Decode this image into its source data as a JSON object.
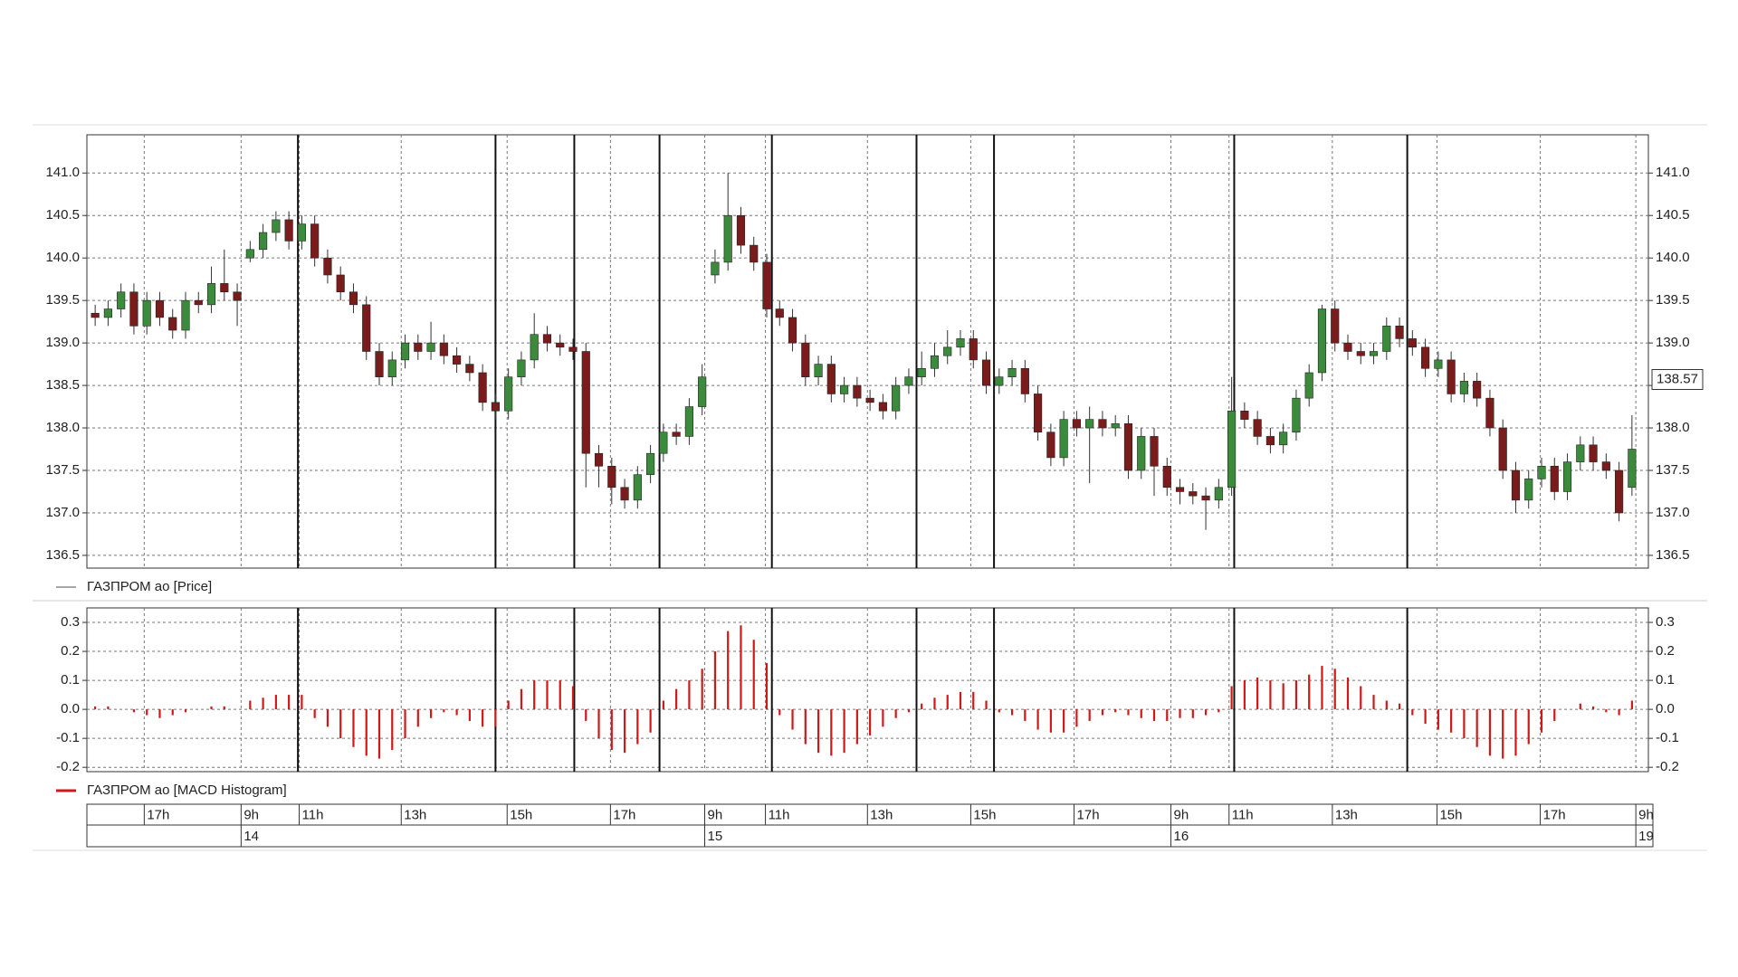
{
  "chart_data": [
    {
      "type": "candlestick",
      "legend": "ГАЗПРОМ ао [Price]",
      "line_color": "#888888",
      "up_color": "#3c8a3c",
      "down_color": "#7a1c1c",
      "grid": true,
      "xlim": [
        0,
        120
      ],
      "ylim": [
        136.35,
        141.45
      ],
      "yticks": [
        {
          "value": 141,
          "label": "141.0"
        },
        140.5,
        {
          "value": 140,
          "label": "140.0"
        },
        139.5,
        {
          "value": 139,
          "label": "139.0"
        },
        138.5,
        {
          "value": 138,
          "label": "138.0"
        },
        137.5,
        {
          "value": 137,
          "label": "137.0"
        },
        136.5
      ],
      "last_price": 138.57,
      "xticks": [
        {
          "value": 4.3,
          "label": "17h"
        },
        {
          "value": 11.8,
          "label": "9h"
        },
        {
          "value": 16.3,
          "label": "11h"
        },
        {
          "value": 24.2,
          "label": "13h"
        },
        {
          "value": 32.4,
          "label": "15h"
        },
        {
          "value": 40.4,
          "label": "17h"
        },
        {
          "value": 47.7,
          "label": "9h"
        },
        {
          "value": 52.4,
          "label": "11h"
        },
        {
          "value": 60.3,
          "label": "13h"
        },
        {
          "value": 68.3,
          "label": "15h"
        },
        {
          "value": 76.3,
          "label": "17h"
        },
        {
          "value": 83.8,
          "label": "9h"
        },
        {
          "value": 88.3,
          "label": "11h"
        },
        {
          "value": 96.3,
          "label": "13h"
        },
        {
          "value": 104.4,
          "label": "15h"
        },
        {
          "value": 112.4,
          "label": "17h"
        },
        {
          "value": 119.8,
          "label": "9h"
        }
      ],
      "day_ticks": [
        {
          "value": 11.8,
          "label": "14"
        },
        {
          "value": 47.7,
          "label": "15"
        },
        {
          "value": 83.8,
          "label": "16"
        },
        {
          "value": 119.8,
          "label": "19"
        }
      ],
      "session_breaks": [
        16.2,
        31.5,
        37.6,
        44.2,
        52.9,
        64.1,
        70.1,
        88.7,
        102.1
      ],
      "open": [
        139.35,
        139.3,
        139.4,
        139.6,
        139.2,
        139.5,
        139.3,
        139.15,
        139.5,
        139.45,
        139.7,
        139.6,
        140.0,
        140.1,
        140.3,
        140.45,
        140.2,
        140.4,
        140.0,
        139.8,
        139.6,
        139.45,
        138.9,
        138.6,
        138.8,
        139.0,
        138.9,
        139.0,
        138.85,
        138.75,
        138.65,
        138.3,
        138.2,
        138.6,
        138.8,
        139.1,
        139.0,
        138.95,
        138.9,
        137.7,
        137.55,
        137.3,
        137.15,
        137.45,
        137.7,
        137.95,
        137.9,
        138.25,
        139.8,
        139.95,
        140.5,
        140.15,
        139.95,
        139.4,
        139.3,
        139.0,
        138.6,
        138.75,
        138.4,
        138.5,
        138.35,
        138.3,
        138.2,
        138.5,
        138.6,
        138.7,
        138.85,
        138.95,
        139.05,
        138.8,
        138.5,
        138.6,
        138.7,
        138.4,
        137.95,
        137.65,
        138.1,
        138.0,
        138.1,
        138.0,
        138.05,
        137.5,
        137.9,
        137.55,
        137.3,
        137.25,
        137.2,
        137.15,
        137.3,
        138.2,
        138.1,
        137.9,
        137.8,
        137.95,
        138.35,
        138.65,
        139.4,
        139.0,
        138.9,
        138.85,
        138.9,
        139.2,
        139.05,
        138.95,
        138.7,
        138.8,
        138.4,
        138.55,
        138.35,
        138.0,
        137.5,
        137.15,
        137.4,
        137.55,
        137.25,
        137.6,
        137.8,
        137.6,
        137.5,
        137.3
      ],
      "high": [
        139.45,
        139.5,
        139.7,
        139.7,
        139.6,
        139.6,
        139.4,
        139.6,
        139.6,
        139.9,
        140.1,
        139.7,
        140.2,
        140.4,
        140.55,
        140.55,
        140.5,
        140.5,
        140.1,
        139.9,
        139.7,
        139.55,
        139.0,
        138.9,
        139.1,
        139.1,
        139.25,
        139.1,
        138.95,
        138.85,
        138.75,
        138.4,
        138.7,
        138.9,
        139.35,
        139.2,
        139.1,
        139.05,
        139.0,
        137.8,
        137.65,
        137.4,
        137.55,
        137.8,
        138.05,
        138.05,
        138.35,
        138.75,
        140.1,
        141.0,
        140.6,
        140.25,
        140.05,
        139.5,
        139.4,
        139.1,
        138.85,
        138.85,
        138.6,
        138.6,
        138.45,
        138.4,
        138.6,
        138.7,
        138.9,
        139.0,
        139.15,
        139.15,
        139.15,
        138.9,
        138.7,
        138.8,
        138.8,
        138.5,
        138.05,
        138.2,
        138.2,
        138.25,
        138.2,
        138.15,
        138.15,
        138.0,
        138.0,
        137.65,
        137.4,
        137.35,
        137.3,
        137.4,
        138.6,
        138.3,
        138.2,
        138.0,
        138.05,
        138.45,
        138.75,
        139.45,
        139.5,
        139.1,
        139.0,
        139.0,
        139.3,
        139.3,
        139.15,
        139.05,
        138.9,
        138.9,
        138.65,
        138.65,
        138.45,
        138.1,
        137.6,
        137.5,
        137.65,
        137.65,
        137.7,
        137.9,
        137.9,
        137.7,
        137.6,
        138.15
      ],
      "low": [
        139.2,
        139.2,
        139.3,
        139.1,
        139.1,
        139.2,
        139.05,
        139.05,
        139.35,
        139.35,
        139.5,
        139.2,
        139.95,
        140.0,
        140.2,
        140.1,
        140.1,
        139.9,
        139.7,
        139.5,
        139.35,
        138.8,
        138.5,
        138.5,
        138.7,
        138.8,
        138.8,
        138.75,
        138.65,
        138.55,
        138.2,
        138.1,
        138.1,
        138.5,
        138.7,
        138.9,
        138.85,
        138.8,
        137.3,
        137.3,
        137.1,
        137.05,
        137.05,
        137.35,
        137.6,
        137.8,
        137.8,
        138.15,
        139.7,
        139.85,
        140.05,
        139.85,
        139.3,
        139.2,
        138.9,
        138.5,
        138.5,
        138.3,
        138.3,
        138.25,
        138.2,
        138.1,
        138.1,
        138.4,
        138.5,
        138.6,
        138.75,
        138.85,
        138.7,
        138.4,
        138.4,
        138.5,
        138.3,
        137.85,
        137.55,
        137.55,
        137.9,
        137.35,
        137.9,
        137.9,
        137.4,
        137.4,
        137.2,
        137.2,
        137.1,
        137.1,
        136.8,
        137.05,
        137.2,
        138.0,
        137.8,
        137.7,
        137.7,
        137.85,
        138.25,
        138.55,
        138.9,
        138.8,
        138.75,
        138.75,
        138.8,
        138.95,
        138.85,
        138.6,
        138.6,
        138.3,
        138.3,
        138.25,
        137.9,
        137.4,
        137.0,
        137.05,
        137.3,
        137.15,
        137.15,
        137.5,
        137.5,
        137.4,
        136.9,
        137.2
      ],
      "close": [
        139.3,
        139.4,
        139.6,
        139.2,
        139.5,
        139.3,
        139.15,
        139.5,
        139.45,
        139.7,
        139.6,
        139.5,
        140.1,
        140.3,
        140.45,
        140.2,
        140.4,
        140.0,
        139.8,
        139.6,
        139.45,
        138.9,
        138.6,
        138.8,
        139.0,
        138.9,
        139.0,
        138.85,
        138.75,
        138.65,
        138.3,
        138.2,
        138.6,
        138.8,
        139.1,
        139.0,
        138.95,
        138.9,
        137.7,
        137.55,
        137.3,
        137.15,
        137.45,
        137.7,
        137.95,
        137.9,
        138.25,
        138.6,
        139.95,
        140.5,
        140.15,
        139.95,
        139.4,
        139.3,
        139.0,
        138.6,
        138.75,
        138.4,
        138.5,
        138.35,
        138.3,
        138.2,
        138.5,
        138.6,
        138.7,
        138.85,
        138.95,
        139.05,
        138.8,
        138.5,
        138.6,
        138.7,
        138.4,
        137.95,
        137.65,
        138.1,
        138.0,
        138.1,
        138.0,
        138.05,
        137.5,
        137.9,
        137.55,
        137.3,
        137.25,
        137.2,
        137.15,
        137.3,
        138.2,
        138.1,
        137.9,
        137.8,
        137.95,
        138.35,
        138.65,
        139.4,
        139.0,
        138.9,
        138.85,
        138.9,
        139.2,
        139.05,
        138.95,
        138.7,
        138.8,
        138.4,
        138.55,
        138.35,
        138.0,
        137.5,
        137.15,
        137.4,
        137.55,
        137.25,
        137.6,
        137.8,
        137.6,
        137.5,
        137.0,
        137.75
      ]
    },
    {
      "type": "bar",
      "legend": "ГАЗПРОМ ао [MACD Histogram]",
      "color": "#d01818",
      "grid": true,
      "ylim": [
        -0.215,
        0.35
      ],
      "yticks": [
        0.3,
        0.2,
        0.1,
        {
          "value": 0,
          "label": "0.0"
        },
        -0.1,
        -0.2
      ],
      "values": [
        0.01,
        0.01,
        0,
        -0.01,
        -0.02,
        -0.03,
        -0.02,
        -0.01,
        0,
        0.01,
        0.01,
        0,
        0.03,
        0.04,
        0.05,
        0.05,
        0.05,
        -0.03,
        -0.06,
        -0.1,
        -0.13,
        -0.16,
        -0.17,
        -0.14,
        -0.1,
        -0.06,
        -0.03,
        -0.01,
        -0.02,
        -0.04,
        -0.06,
        -0.06,
        0.03,
        0.07,
        0.1,
        0.1,
        0.1,
        0.08,
        -0.04,
        -0.1,
        -0.14,
        -0.15,
        -0.12,
        -0.08,
        0.03,
        0.07,
        0.1,
        0.14,
        0.2,
        0.27,
        0.29,
        0.24,
        0.16,
        -0.02,
        -0.07,
        -0.12,
        -0.15,
        -0.16,
        -0.15,
        -0.12,
        -0.09,
        -0.06,
        -0.03,
        -0.01,
        0.02,
        0.04,
        0.05,
        0.06,
        0.06,
        0.03,
        -0.01,
        -0.02,
        -0.04,
        -0.07,
        -0.08,
        -0.08,
        -0.06,
        -0.04,
        -0.02,
        -0.01,
        -0.02,
        -0.03,
        -0.04,
        -0.04,
        -0.03,
        -0.03,
        -0.02,
        -0.01,
        0.08,
        0.1,
        0.11,
        0.1,
        0.09,
        0.1,
        0.12,
        0.15,
        0.14,
        0.11,
        0.08,
        0.05,
        0.03,
        0.02,
        -0.02,
        -0.05,
        -0.07,
        -0.08,
        -0.1,
        -0.13,
        -0.16,
        -0.17,
        -0.16,
        -0.12,
        -0.08,
        -0.04,
        0,
        0.02,
        0.01,
        -0.01,
        -0.02,
        0.03
      ]
    }
  ]
}
